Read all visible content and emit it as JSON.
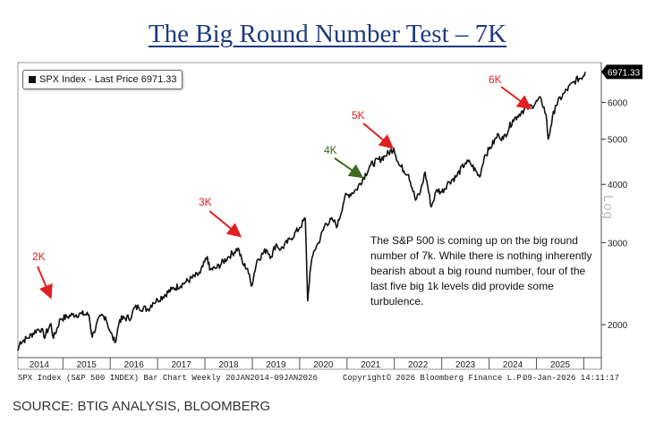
{
  "title": "The Big Round Number Test – 7K",
  "source": "SOURCE: BTIG ANALYSIS, BLOOMBERG",
  "legend": {
    "label": "SPX Index - Last Price 6971.33"
  },
  "annotation": "The S&P 500 is coming up on the big round number of 7k. While there is nothing inherently bearish about a big round number, four of the last five big 1k levels did provide some turbulence.",
  "footer": {
    "left": "SPX Index (S&P 500 INDEX) Bar Chart Weekly 20JAN2014-09JAN2026",
    "middle": "Copyright© 2026 Bloomberg Finance L.P.",
    "right": "09-Jan-2026 14:11:17"
  },
  "y_axis_label": "Log",
  "colors": {
    "title": "#1f3b80",
    "line": "#111111",
    "red_arrow": "#e02020",
    "green_arrow": "#3d6b1e"
  },
  "chart_data": {
    "type": "line",
    "scale": "log",
    "title": "SPX Index - Last Price",
    "last_price": 6971.33,
    "last_price_label": "6971.33",
    "ylim": [
      1700,
      7300
    ],
    "yticks": [
      2000,
      3000,
      4000,
      5000,
      6000
    ],
    "ytick_labels": [
      "2000",
      "3000",
      "4000",
      "5000",
      "6000"
    ],
    "xlim": [
      2014.05,
      2026.03
    ],
    "xticks": [
      "2014",
      "2015",
      "2016",
      "2017",
      "2018",
      "2019",
      "2020",
      "2021",
      "2022",
      "2023",
      "2024",
      "2025"
    ],
    "series": [
      {
        "name": "SPX Index",
        "x": [
          2014.05,
          2014.1,
          2014.25,
          2014.45,
          2014.55,
          2014.6,
          2014.75,
          2014.8,
          2014.95,
          2015.1,
          2015.2,
          2015.4,
          2015.55,
          2015.62,
          2015.65,
          2015.8,
          2015.9,
          2016.0,
          2016.1,
          2016.2,
          2016.45,
          2016.5,
          2016.6,
          2016.8,
          2016.9,
          2017.0,
          2017.3,
          2017.6,
          2017.9,
          2018.05,
          2018.1,
          2018.25,
          2018.5,
          2018.7,
          2018.8,
          2018.9,
          2018.98,
          2019.1,
          2019.3,
          2019.4,
          2019.5,
          2019.6,
          2019.8,
          2020.0,
          2020.12,
          2020.17,
          2020.22,
          2020.3,
          2020.4,
          2020.55,
          2020.7,
          2020.8,
          2020.95,
          2021.2,
          2021.5,
          2021.8,
          2021.99,
          2022.1,
          2022.3,
          2022.45,
          2022.55,
          2022.65,
          2022.78,
          2022.9,
          2023.0,
          2023.15,
          2023.3,
          2023.5,
          2023.6,
          2023.8,
          2023.9,
          2024.0,
          2024.2,
          2024.3,
          2024.5,
          2024.6,
          2024.7,
          2024.9,
          2025.1,
          2025.2,
          2025.25,
          2025.3,
          2025.4,
          2025.6,
          2025.8,
          2026.0,
          2026.03
        ],
        "values": [
          1760,
          1840,
          1870,
          1950,
          1960,
          1880,
          2010,
          1870,
          2060,
          2080,
          2100,
          2110,
          2100,
          1880,
          1930,
          2090,
          2080,
          1930,
          1830,
          2050,
          2080,
          2170,
          2180,
          2160,
          2230,
          2260,
          2380,
          2470,
          2580,
          2800,
          2620,
          2650,
          2800,
          2920,
          2700,
          2640,
          2420,
          2750,
          2900,
          2800,
          2980,
          2900,
          3050,
          3230,
          3380,
          2250,
          2600,
          2880,
          3000,
          3300,
          3350,
          3260,
          3750,
          3900,
          4400,
          4600,
          4780,
          4400,
          4200,
          3700,
          3850,
          4250,
          3580,
          3900,
          3850,
          4050,
          4150,
          4450,
          4450,
          4150,
          4600,
          4750,
          5120,
          5000,
          5500,
          5600,
          5750,
          5900,
          6100,
          5650,
          5000,
          5300,
          5900,
          6300,
          6650,
          6850,
          6971
        ]
      }
    ],
    "annotations": [
      {
        "label": "2K",
        "color": "red"
      },
      {
        "label": "3K",
        "color": "red"
      },
      {
        "label": "4K",
        "color": "green"
      },
      {
        "label": "5K",
        "color": "red"
      },
      {
        "label": "6K",
        "color": "red"
      }
    ]
  }
}
